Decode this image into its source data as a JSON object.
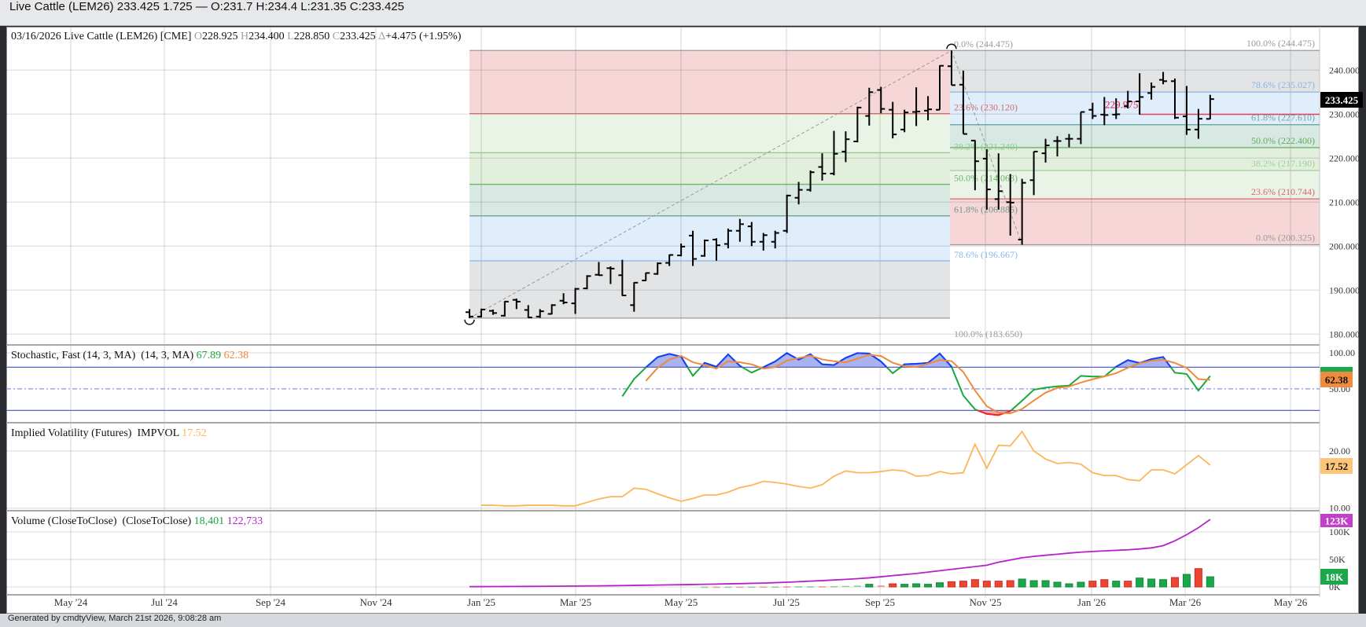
{
  "window": {
    "title": "Live Cattle (LEM26) 233.425 1.725 — O:231.7 H:234.4 L:231.35 C:233.425"
  },
  "header": {
    "date": "03/16/2026",
    "name": "Live Cattle (LEM26)",
    "exchange": "[CME]",
    "open_label": "O",
    "open": "228.925",
    "high_label": "H",
    "high": "234.400",
    "low_label": "L",
    "low": "228.850",
    "close_label": "C",
    "close": "233.425",
    "change_label": "Δ",
    "change": "+4.475 (+1.95%)"
  },
  "footer": {
    "text": "Generated by cmdtyView, March 21st 2026, 9:08:28 am"
  },
  "colors": {
    "up_volume": "#1aa84a",
    "down_volume": "#ee4433",
    "stoch_k": "#1aa83a",
    "stoch_k_overbought": "#1a3cff",
    "stoch_k_oversold": "#ff2020",
    "stoch_d": "#f08a3c",
    "impvol": "#fdb55a",
    "open_interest": "#b522c9",
    "level_line": "#e0445c"
  },
  "chart_data": [
    {
      "type": "ohlc",
      "title": "Live Cattle (LEM26)",
      "interval": "weekly",
      "x_ticks": [
        "May '24",
        "Jul '24",
        "Sep '24",
        "Nov '24",
        "Jan '25",
        "Mar '25",
        "May '25",
        "Jul '25",
        "Sep '25",
        "Nov '25",
        "Jan '26",
        "Mar '26",
        "May '26"
      ],
      "y_ticks": [
        "240.000",
        "230.000",
        "220.000",
        "210.000",
        "200.000",
        "190.000",
        "180.000"
      ],
      "y_tick_values": [
        240,
        230,
        220,
        210,
        200,
        190,
        180
      ],
      "ylim": [
        178,
        250
      ],
      "last_price": "233.425",
      "ohlc": [
        [
          185.0,
          185.7,
          183.65,
          184.0
        ],
        [
          184.0,
          185.8,
          183.8,
          185.6
        ],
        [
          185.3,
          185.6,
          184.4,
          184.8
        ],
        [
          184.2,
          187.5,
          184.0,
          187.4
        ],
        [
          187.8,
          188.1,
          185.7,
          187.4
        ],
        [
          185.5,
          186.6,
          183.7,
          183.8
        ],
        [
          184.0,
          185.7,
          183.7,
          185.2
        ],
        [
          184.6,
          186.8,
          184.5,
          186.6
        ],
        [
          187.6,
          189.3,
          186.8,
          187.2
        ],
        [
          187.0,
          190.5,
          184.6,
          190.3
        ],
        [
          190.4,
          193.4,
          190.2,
          193.2
        ],
        [
          193.5,
          196.4,
          193.3,
          193.4
        ],
        [
          195.0,
          195.4,
          191.4,
          194.9
        ],
        [
          193.4,
          196.9,
          188.7,
          188.8
        ],
        [
          186.6,
          191.8,
          185.1,
          191.7
        ],
        [
          192.2,
          194.0,
          192.1,
          193.9
        ],
        [
          193.7,
          196.3,
          193.5,
          196.1
        ],
        [
          196.2,
          198.1,
          195.5,
          198.0
        ],
        [
          197.9,
          200.6,
          197.7,
          199.9
        ],
        [
          202.4,
          203.5,
          195.5,
          197.1
        ],
        [
          197.8,
          201.5,
          197.6,
          201.3
        ],
        [
          201.5,
          201.8,
          196.7,
          200.2
        ],
        [
          200.5,
          204.0,
          199.5,
          203.5
        ],
        [
          203.5,
          206.2,
          201.0,
          205.0
        ],
        [
          204.5,
          205.5,
          200.0,
          201.0
        ],
        [
          201.0,
          203.0,
          199.0,
          202.5
        ],
        [
          201.0,
          203.5,
          199.5,
          203.0
        ],
        [
          203.5,
          211.7,
          203.0,
          211.5
        ],
        [
          211.0,
          214.6,
          209.5,
          212.8
        ],
        [
          212.8,
          217.2,
          212.4,
          216.8
        ],
        [
          218.0,
          221.1,
          214.9,
          216.5
        ],
        [
          216.5,
          226.2,
          216.1,
          221.0
        ],
        [
          221.5,
          226.1,
          219.1,
          224.3
        ],
        [
          223.8,
          231.7,
          223.6,
          231.5
        ],
        [
          229.6,
          236.0,
          227.4,
          235.0
        ],
        [
          235.5,
          236.2,
          230.2,
          231.2
        ],
        [
          231.0,
          232.8,
          224.5,
          225.4
        ],
        [
          226.5,
          231.0,
          225.9,
          230.4
        ],
        [
          230.5,
          236.1,
          227.3,
          230.6
        ],
        [
          230.8,
          234.1,
          228.6,
          231.1
        ],
        [
          231.0,
          241.1,
          231.0,
          241.0
        ],
        [
          240.9,
          244.475,
          236.6,
          236.6
        ],
        [
          236.7,
          239.9,
          225.5,
          225.5
        ],
        [
          224.0,
          224.1,
          212.7,
          219.3
        ],
        [
          219.9,
          222.0,
          208.3,
          212.9
        ],
        [
          210.7,
          221.1,
          208.3,
          212.5
        ],
        [
          210.0,
          216.4,
          202.4,
          209.9
        ],
        [
          201.5,
          215.3,
          200.325,
          214.4
        ],
        [
          215.0,
          221.5,
          211.6,
          221.5
        ],
        [
          221.1,
          224.4,
          219.0,
          222.9
        ],
        [
          223.9,
          225.0,
          220.4,
          223.9
        ],
        [
          224.4,
          225.5,
          222.5,
          224.4
        ],
        [
          224.4,
          230.5,
          223.2,
          230.5
        ],
        [
          231.0,
          232.6,
          228.9,
          229.6
        ],
        [
          229.9,
          233.9,
          227.5,
          229.8
        ],
        [
          229.9,
          233.6,
          228.9,
          229.975
        ],
        [
          231.8,
          235.3,
          231.3,
          232.9
        ],
        [
          232.9,
          239.3,
          229.9,
          233.9
        ],
        [
          234.8,
          237.2,
          233.3,
          236.2
        ],
        [
          237.8,
          239.6,
          236.8,
          237.5
        ],
        [
          237.5,
          238.1,
          228.9,
          229.2
        ],
        [
          229.5,
          236.4,
          225.3,
          226.5
        ],
        [
          226.5,
          231.2,
          224.4,
          228.95
        ],
        [
          228.925,
          234.4,
          228.85,
          233.425
        ]
      ],
      "swing_low_index": 0,
      "swing_high_index": 41,
      "swing_low2_index": 47,
      "fib_left": [
        {
          "value": 244.475,
          "label": "0.0% (244.475)",
          "color": "#9a9a9a"
        },
        {
          "value": 230.12,
          "label": "23.6% (230.120)",
          "color": "#d9686c"
        },
        {
          "value": 221.24,
          "label": "38.2% (221.240)",
          "color": "#8fc98a"
        },
        {
          "value": 214.063,
          "label": "50.0% (214.063)",
          "color": "#6cb868"
        },
        {
          "value": 206.885,
          "label": "61.8% (206.885)",
          "color": "#6f9a88"
        },
        {
          "value": 196.667,
          "label": "78.6% (196.667)",
          "color": "#8ab8ea"
        },
        {
          "value": 183.65,
          "label": "100.0% (183.650)",
          "color": "#9a9a9a"
        }
      ],
      "fib_right": [
        {
          "value": 244.475,
          "label": "100.0% (244.475)",
          "color": "#9a9a9a"
        },
        {
          "value": 235.027,
          "label": "78.6% (235.027)",
          "color": "#8ab4e0"
        },
        {
          "value": 227.61,
          "label": "61.8% (227.610)",
          "color": "#6aa8a0"
        },
        {
          "value": 222.4,
          "label": "50.0% (222.400)",
          "color": "#5fae5a"
        },
        {
          "value": 217.19,
          "label": "38.2% (217.190)",
          "color": "#9fd09a"
        },
        {
          "value": 210.744,
          "label": "23.6% (210.744)",
          "color": "#d9686c"
        },
        {
          "value": 200.325,
          "label": "0.0% (200.325)",
          "color": "#9a9a9a"
        }
      ],
      "level_line": {
        "value": 229.975,
        "label": "229.975",
        "start_index": 57
      }
    },
    {
      "type": "line",
      "title": "Stochastic, Fast (14, 3, MA)",
      "params": "(14, 3, MA)",
      "k_last": "67.89",
      "d_last": "62.38",
      "y_ticks": [
        "100.00",
        "50.00"
      ],
      "ylim": [
        0,
        100
      ],
      "bands": [
        80,
        20,
        50
      ],
      "k_start_index": 13,
      "k": [
        39.6,
        63.6,
        79.6,
        94,
        98.5,
        94.5,
        68,
        86,
        80.7,
        97.8,
        81.8,
        72.4,
        80,
        88,
        99.6,
        90.5,
        98,
        84,
        83,
        93,
        99.6,
        98.9,
        88,
        71.6,
        84,
        84.7,
        86,
        98.9,
        80.7,
        40.7,
        21.4,
        15.2,
        13.5,
        19,
        33.5,
        48.7,
        51.6,
        53.4,
        54.5,
        68,
        67,
        67,
        80.7,
        89.8,
        85.8,
        91.2,
        94.2,
        72.4,
        70.5,
        47.6,
        67.89
      ],
      "d_start_index": 15,
      "d": [
        60.9,
        79.1,
        90.7,
        95.7,
        87,
        82.8,
        78.2,
        88.2,
        86.8,
        84,
        78.1,
        80.1,
        89.2,
        92.7,
        96,
        90.8,
        88.3,
        86.7,
        91.9,
        97.2,
        95.5,
        86.2,
        81.2,
        80.1,
        84.9,
        89.9,
        88.5,
        73.4,
        47.6,
        25.8,
        16.7,
        15.9,
        22,
        33.7,
        44.6,
        51.2,
        53.2,
        58.6,
        63.2,
        67.3,
        71.6,
        79.2,
        85.4,
        88.9,
        90.4,
        85.9,
        79,
        63.5,
        62.38
      ]
    },
    {
      "type": "line",
      "title": "Implied Volatility (Futures)",
      "series_name": "IMPVOL",
      "last": "17.52",
      "y_ticks": [
        "20.00",
        "10.00"
      ],
      "ylim": [
        9,
        25
      ],
      "start_index": 1,
      "values": [
        10.5,
        10.5,
        10.4,
        10.4,
        10.5,
        10.5,
        10.5,
        10.4,
        10.4,
        11.0,
        11.6,
        12.0,
        12.0,
        13.5,
        13.3,
        12.5,
        11.8,
        11.2,
        11.7,
        12.3,
        12.3,
        12.8,
        13.6,
        14.0,
        14.7,
        14.5,
        14.2,
        13.8,
        13.5,
        14.1,
        15.6,
        16.5,
        16.2,
        16.2,
        16.4,
        16.7,
        16.5,
        15.6,
        15.7,
        16.4,
        16.0,
        16.2,
        21.2,
        17.0,
        21.0,
        20.9,
        23.4,
        20.0,
        18.6,
        17.8,
        18.0,
        17.7,
        16.2,
        15.7,
        15.7,
        15.0,
        14.8,
        16.7,
        16.7,
        16.0,
        17.6,
        19.2,
        17.52
      ]
    },
    {
      "type": "bar",
      "title": "Volume (CloseToClose)",
      "params": "(CloseToClose)",
      "volume_last": "18,401",
      "open_interest_last": "122,733",
      "volume_badge": "18K",
      "open_interest_badge": "123K",
      "y_ticks": [
        "100K",
        "50K",
        "0K"
      ],
      "units": "thousands",
      "volume_start_index": 20,
      "volume_k": [
        0.3,
        0.3,
        0.4,
        0.5,
        0.5,
        0.6,
        0.7,
        0.8,
        1.0,
        1.0,
        1.2,
        1.5,
        2.0,
        2.5,
        4.8,
        2.9,
        5.7,
        4.8,
        5.7,
        4.8,
        7.6,
        9.5,
        10.5,
        13.3,
        10.5,
        10.5,
        11.4,
        14.3,
        11.4,
        11.4,
        8.6,
        5.7,
        8.6,
        10.5,
        13.3,
        10.5,
        10.5,
        16.2,
        14.3,
        13.3,
        17.1,
        22.8,
        33.3,
        18.401
      ],
      "volume_dir": [
        "up",
        "down",
        "up",
        "down",
        "up",
        "down",
        "up",
        "down",
        "up",
        "up",
        "down",
        "up",
        "up",
        "up",
        "up",
        "down",
        "down",
        "up",
        "up",
        "up",
        "up",
        "down",
        "down",
        "down",
        "down",
        "down",
        "down",
        "up",
        "up",
        "up",
        "up",
        "up",
        "up",
        "down",
        "down",
        "up",
        "down",
        "up",
        "up",
        "up",
        "down",
        "up",
        "down",
        "up"
      ],
      "open_interest_k": [
        0.5,
        0.6,
        0.7,
        0.8,
        0.9,
        1.0,
        1.1,
        1.2,
        1.4,
        1.6,
        1.8,
        2.0,
        2.2,
        2.5,
        2.8,
        3.1,
        3.4,
        3.7,
        4.0,
        4.4,
        4.8,
        5.2,
        5.6,
        6.0,
        6.5,
        7.0,
        7.8,
        8.6,
        9.5,
        10.5,
        11.5,
        12.6,
        13.8,
        15.0,
        16.5,
        18.5,
        20.5,
        22.5,
        24.5,
        27,
        29.5,
        32,
        34.5,
        37,
        39.5,
        45,
        49,
        53,
        55.5,
        57.6,
        59.5,
        61.5,
        63.2,
        64.5,
        65.5,
        66.5,
        67.5,
        69,
        71,
        75,
        83.8,
        95,
        107.6,
        122.733
      ]
    }
  ]
}
